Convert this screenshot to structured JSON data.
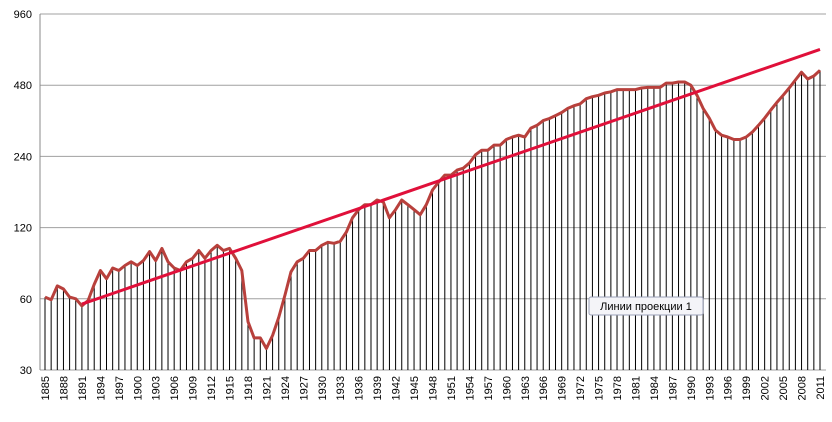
{
  "chart_data": {
    "type": "line",
    "annotation": "Линии проекции 1",
    "x": [
      1885,
      1886,
      1887,
      1888,
      1889,
      1890,
      1891,
      1892,
      1893,
      1894,
      1895,
      1896,
      1897,
      1898,
      1899,
      1900,
      1901,
      1902,
      1903,
      1904,
      1905,
      1906,
      1907,
      1908,
      1909,
      1910,
      1911,
      1912,
      1913,
      1914,
      1915,
      1916,
      1917,
      1918,
      1919,
      1920,
      1921,
      1922,
      1923,
      1924,
      1925,
      1926,
      1927,
      1928,
      1929,
      1930,
      1931,
      1932,
      1933,
      1934,
      1935,
      1936,
      1937,
      1938,
      1939,
      1940,
      1941,
      1942,
      1943,
      1944,
      1945,
      1946,
      1947,
      1948,
      1949,
      1950,
      1951,
      1952,
      1953,
      1954,
      1955,
      1956,
      1957,
      1958,
      1959,
      1960,
      1961,
      1962,
      1963,
      1964,
      1965,
      1966,
      1967,
      1968,
      1969,
      1970,
      1971,
      1972,
      1973,
      1974,
      1975,
      1976,
      1977,
      1978,
      1979,
      1980,
      1981,
      1982,
      1983,
      1984,
      1985,
      1986,
      1987,
      1988,
      1989,
      1990,
      1991,
      1992,
      1993,
      1994,
      1995,
      1996,
      1997,
      1998,
      1999,
      2000,
      2001,
      2002,
      2003,
      2004,
      2005,
      2006,
      2007,
      2008,
      2009,
      2010,
      2011
    ],
    "series": [
      {
        "color": "#b8403c",
        "bar_color": "#000000",
        "values": [
          61,
          59.5,
          68,
          66,
          61,
          60,
          56,
          59,
          69,
          79,
          73,
          81,
          79,
          83,
          86,
          83,
          87,
          95,
          87,
          98,
          86,
          81,
          79,
          86,
          89,
          96,
          89,
          96,
          101,
          96,
          98,
          89,
          79,
          48,
          41,
          41,
          37,
          42,
          50,
          62,
          78,
          86,
          89,
          96,
          96,
          101,
          104,
          103,
          105,
          115,
          132,
          143,
          150,
          150,
          157,
          154,
          132,
          143,
          157,
          150,
          143,
          136,
          150,
          173,
          187,
          200,
          200,
          210,
          214,
          225,
          244,
          255,
          255,
          268,
          268,
          283,
          290,
          295,
          290,
          316,
          325,
          340,
          347,
          357,
          368,
          383,
          393,
          400,
          421,
          429,
          435,
          445,
          450,
          460,
          460,
          460,
          460,
          467,
          470,
          470,
          470,
          490,
          490,
          495,
          495,
          480,
          435,
          383,
          348,
          310,
          295,
          290,
          283,
          283,
          290,
          304,
          325,
          348,
          377,
          406,
          435,
          467,
          505,
          545,
          510,
          525,
          555
        ]
      }
    ],
    "trend_line": {
      "x": [
        1891,
        2011
      ],
      "values": [
        57,
        680
      ],
      "color": "#e0103a"
    },
    "xlim": [
      1885,
      2011
    ],
    "xticks": [
      1885,
      1888,
      1891,
      1894,
      1897,
      1900,
      1903,
      1906,
      1909,
      1912,
      1915,
      1918,
      1921,
      1924,
      1927,
      1930,
      1933,
      1936,
      1939,
      1942,
      1945,
      1948,
      1951,
      1954,
      1957,
      1960,
      1963,
      1966,
      1969,
      1972,
      1975,
      1978,
      1981,
      1984,
      1987,
      1990,
      1993,
      1996,
      1999,
      2002,
      2005,
      2008,
      2011
    ],
    "ylim": [
      30,
      960
    ],
    "yticks": [
      30,
      60,
      120,
      240,
      480,
      960
    ],
    "log_y": true,
    "grid": true
  }
}
